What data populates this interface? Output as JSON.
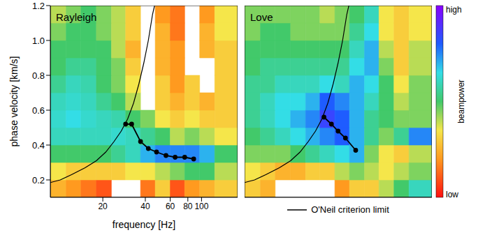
{
  "chart_data": [
    {
      "type": "heatmap",
      "title": "Rayleigh",
      "x_label": "frequency [Hz]",
      "y_label": "phase velocity [km/s]",
      "log": "x",
      "xlim": [
        8.5,
        180
      ],
      "xticks": [
        20,
        40,
        60,
        80,
        100
      ],
      "ylim": [
        0.1,
        1.2
      ],
      "yticks": [
        0.2,
        0.4,
        0.6,
        0.8,
        {
          "value": 1,
          "label": "1.0"
        },
        1.2
      ],
      "x_edges": [
        8.5,
        11,
        14,
        18,
        23,
        29,
        37,
        47,
        60,
        76,
        97,
        124,
        180
      ],
      "y_edges": [
        0.1,
        0.2,
        0.3,
        0.4,
        0.5,
        0.6,
        0.7,
        0.8,
        0.9,
        1.0,
        1.1,
        1.2
      ],
      "cells": [
        [
          0.25,
          0.2,
          0.15,
          0.1,
          null,
          null,
          0.15,
          0.3,
          0.1,
          0.2,
          0.25,
          0.3
        ],
        [
          0.35,
          0.3,
          0.3,
          0.3,
          0.3,
          0.35,
          0.35,
          0.4,
          0.45,
          0.5,
          0.5,
          0.4
        ],
        [
          0.5,
          0.5,
          0.5,
          0.5,
          0.55,
          0.6,
          0.7,
          0.75,
          0.75,
          0.75,
          0.7,
          0.5
        ],
        [
          0.6,
          0.6,
          0.6,
          0.6,
          0.62,
          0.6,
          0.55,
          0.5,
          0.4,
          0.45,
          0.4,
          0.35
        ],
        [
          0.62,
          0.65,
          0.62,
          0.6,
          0.58,
          0.5,
          0.45,
          0.35,
          0.3,
          0.35,
          0.3,
          0.3
        ],
        [
          0.6,
          0.62,
          0.6,
          0.55,
          0.5,
          0.4,
          null,
          0.3,
          0.25,
          0.3,
          0.25,
          0.3
        ],
        [
          0.55,
          0.6,
          0.58,
          0.5,
          0.45,
          0.35,
          null,
          0.3,
          0.2,
          0.3,
          null,
          0.3
        ],
        [
          0.5,
          0.55,
          0.55,
          0.5,
          0.45,
          0.3,
          null,
          0.25,
          0.2,
          null,
          null,
          0.3
        ],
        [
          0.5,
          0.5,
          0.5,
          0.5,
          0.4,
          0.25,
          null,
          0.25,
          0.2,
          null,
          0.25,
          0.3
        ],
        [
          0.45,
          0.5,
          0.5,
          0.45,
          0.4,
          0.3,
          null,
          0.25,
          0.15,
          null,
          0.25,
          0.35
        ],
        [
          0.4,
          0.45,
          0.5,
          0.45,
          0.4,
          0.3,
          null,
          0.2,
          0.15,
          null,
          0.2,
          0.35
        ]
      ],
      "series": [
        {
          "name": "O'Neil criterion limit",
          "color": "#000000",
          "x": [
            8.5,
            10,
            12,
            15,
            18,
            21,
            24,
            27,
            30,
            33,
            36,
            39,
            42,
            45,
            46.5
          ],
          "values": [
            0.185,
            0.2,
            0.23,
            0.27,
            0.31,
            0.36,
            0.42,
            0.48,
            0.55,
            0.64,
            0.75,
            0.87,
            1.0,
            1.15,
            1.2
          ]
        },
        {
          "color": "#000000",
          "marker": "circle",
          "x": [
            29,
            32,
            37,
            42,
            48,
            56,
            65,
            76,
            88
          ],
          "values": [
            0.52,
            0.52,
            0.42,
            0.38,
            0.36,
            0.34,
            0.33,
            0.33,
            0.32
          ]
        }
      ]
    },
    {
      "type": "heatmap",
      "title": "Love",
      "log": "x",
      "tick_labels": false,
      "legend": "bottom",
      "xlim": [
        8.5,
        180
      ],
      "xticks": [
        20,
        40,
        60,
        80,
        100
      ],
      "ylim": [
        0.1,
        1.2
      ],
      "yticks": [
        0.2,
        0.4,
        0.6,
        0.8,
        1,
        1.2
      ],
      "x_edges": [
        8.5,
        11,
        14,
        18,
        23,
        29,
        37,
        47,
        60,
        76,
        97,
        124,
        180
      ],
      "y_edges": [
        0.1,
        0.2,
        0.3,
        0.4,
        0.5,
        0.6,
        0.7,
        0.8,
        0.9,
        1.0,
        1.1,
        1.2
      ],
      "cells": [
        [
          0.3,
          0.25,
          null,
          null,
          null,
          null,
          0.2,
          0.3,
          0.3,
          0.4,
          0.5,
          0.6
        ],
        [
          0.35,
          0.3,
          0.25,
          0.25,
          0.3,
          0.3,
          0.4,
          0.45,
          0.4,
          0.35,
          0.4,
          0.45
        ],
        [
          0.45,
          0.45,
          0.45,
          0.5,
          0.55,
          0.6,
          0.65,
          0.7,
          0.45,
          0.35,
          0.3,
          0.4
        ],
        [
          0.5,
          0.55,
          0.6,
          0.65,
          0.7,
          0.75,
          0.8,
          0.7,
          0.55,
          0.45,
          0.55,
          0.75
        ],
        [
          0.55,
          0.6,
          0.65,
          0.7,
          0.75,
          0.85,
          0.8,
          0.7,
          0.55,
          0.5,
          0.45,
          0.45
        ],
        [
          0.55,
          0.6,
          0.65,
          0.65,
          0.7,
          0.8,
          0.75,
          0.7,
          0.6,
          0.5,
          0.4,
          0.45
        ],
        [
          0.55,
          0.55,
          0.6,
          0.6,
          0.6,
          0.65,
          0.6,
          0.7,
          0.65,
          0.5,
          0.35,
          0.45
        ],
        [
          0.5,
          0.55,
          0.55,
          0.55,
          0.55,
          0.55,
          0.55,
          0.65,
          0.7,
          0.45,
          0.3,
          0.4
        ],
        [
          0.5,
          0.5,
          0.5,
          0.5,
          0.5,
          0.5,
          0.5,
          0.6,
          0.7,
          0.4,
          0.3,
          0.4
        ],
        [
          0.45,
          0.5,
          0.5,
          0.45,
          0.45,
          0.45,
          0.45,
          0.55,
          0.65,
          0.35,
          0.3,
          0.35
        ],
        [
          0.45,
          0.45,
          0.45,
          0.45,
          0.45,
          0.4,
          0.45,
          0.5,
          0.6,
          0.35,
          0.3,
          0.35
        ]
      ],
      "series": [
        {
          "name": "O'Neil criterion limit",
          "color": "#000000",
          "x": [
            8.5,
            10,
            12,
            15,
            18,
            21,
            24,
            27,
            30,
            33,
            36,
            39,
            42,
            45,
            46.5
          ],
          "values": [
            0.185,
            0.2,
            0.23,
            0.27,
            0.31,
            0.36,
            0.42,
            0.48,
            0.55,
            0.64,
            0.75,
            0.87,
            1.0,
            1.15,
            1.2
          ]
        },
        {
          "color": "#000000",
          "marker": "circle",
          "x": [
            31,
            35,
            39,
            44,
            52
          ],
          "values": [
            0.56,
            0.52,
            0.48,
            0.44,
            0.37
          ]
        }
      ],
      "colorbar": {
        "title": "beampower",
        "range": [
          0,
          1
        ],
        "ticks": [
          {
            "value": 1,
            "label": "high"
          },
          {
            "value": 0,
            "label": "low"
          }
        ]
      }
    }
  ]
}
